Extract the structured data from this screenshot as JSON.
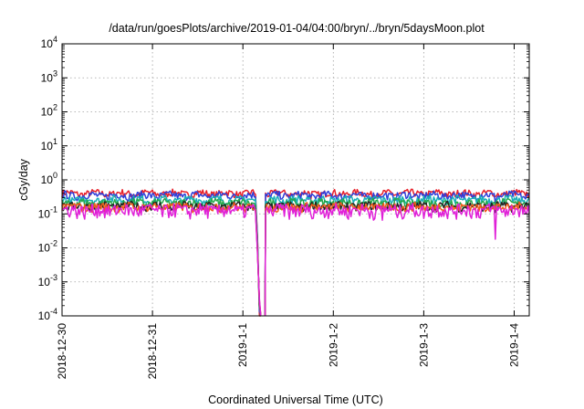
{
  "chart_data": {
    "type": "line",
    "title": "/data/run/goesPlots/archive/2019-01-04/04:00/bryn/../bryn/5daysMoon.plot",
    "xlabel": "Coordinated Universal Time (UTC)",
    "ylabel": "cGy/day",
    "yscale": "log",
    "ylim": [
      0.0001,
      10000
    ],
    "xlim": [
      "2018-12-30T00:00",
      "2019-01-04T04:00"
    ],
    "grid": true,
    "x_ticks": [
      "2018-12-30",
      "2018-12-31",
      "2019-1-1",
      "2019-1-2",
      "2019-1-3",
      "2019-1-4"
    ],
    "y_ticks": [
      {
        "value": 0.0001,
        "mant": "10",
        "exp": "-4"
      },
      {
        "value": 0.001,
        "mant": "10",
        "exp": "-3"
      },
      {
        "value": 0.01,
        "mant": "10",
        "exp": "-2"
      },
      {
        "value": 0.1,
        "mant": "10",
        "exp": "-1"
      },
      {
        "value": 1,
        "mant": "10",
        "exp": "0"
      },
      {
        "value": 10,
        "mant": "10",
        "exp": "1"
      },
      {
        "value": 100,
        "mant": "10",
        "exp": "2"
      },
      {
        "value": 1000,
        "mant": "10",
        "exp": "3"
      },
      {
        "value": 10000,
        "mant": "10",
        "exp": "4"
      }
    ],
    "series": [
      {
        "color": "#e8202a",
        "base": 0.4,
        "noise": 0.16
      },
      {
        "color": "#2f3fd9",
        "base": 0.35,
        "noise": 0.15
      },
      {
        "color": "#1ab0b8",
        "base": 0.26,
        "noise": 0.12
      },
      {
        "color": "#24a84a",
        "base": 0.21,
        "noise": 0.1
      },
      {
        "color": "#222222",
        "base": 0.17,
        "noise": 0.08
      },
      {
        "color": "#f05a1a",
        "base": 0.16,
        "noise": 0.08
      },
      {
        "color": "#e020d8",
        "base": 0.13,
        "noise": 0.1
      }
    ],
    "gap": {
      "start": "2019-01-01T03:30",
      "end": "2019-01-01T06:00",
      "low_value": 0.0001
    },
    "dips": [
      {
        "time": "2018-12-30T05:00",
        "value": 0.12
      },
      {
        "time": "2019-01-01T18:00",
        "value": 0.1
      },
      {
        "time": "2019-01-02T13:00",
        "value": 0.065
      },
      {
        "time": "2019-01-03T19:00",
        "value": 0.018
      },
      {
        "time": "2019-01-04T03:00",
        "value": 0.1
      }
    ]
  }
}
